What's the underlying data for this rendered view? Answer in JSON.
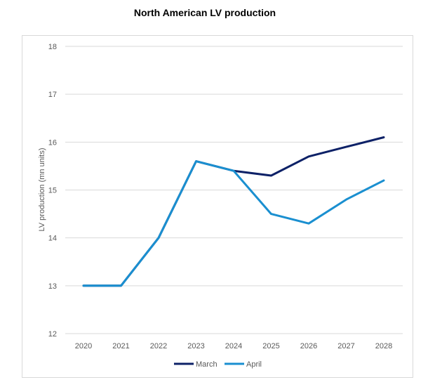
{
  "chart_data": {
    "type": "line",
    "title": "North American LV production",
    "xlabel": "",
    "ylabel": "LV production (mn units)",
    "x": [
      "2020",
      "2021",
      "2022",
      "2023",
      "2024",
      "2025",
      "2026",
      "2027",
      "2028"
    ],
    "ylim": [
      12,
      18
    ],
    "yticks": [
      "12",
      "13",
      "14",
      "15",
      "16",
      "17",
      "18"
    ],
    "grid": "horizontal",
    "legend": "bottom",
    "series": [
      {
        "name": "March",
        "color": "#0d2167",
        "values": [
          13.0,
          13.0,
          14.0,
          15.6,
          15.4,
          15.3,
          15.7,
          15.9,
          16.1
        ]
      },
      {
        "name": "April",
        "color": "#1a8fd0",
        "values": [
          13.0,
          13.0,
          14.0,
          15.6,
          15.4,
          14.5,
          14.3,
          14.8,
          15.2
        ]
      }
    ]
  }
}
